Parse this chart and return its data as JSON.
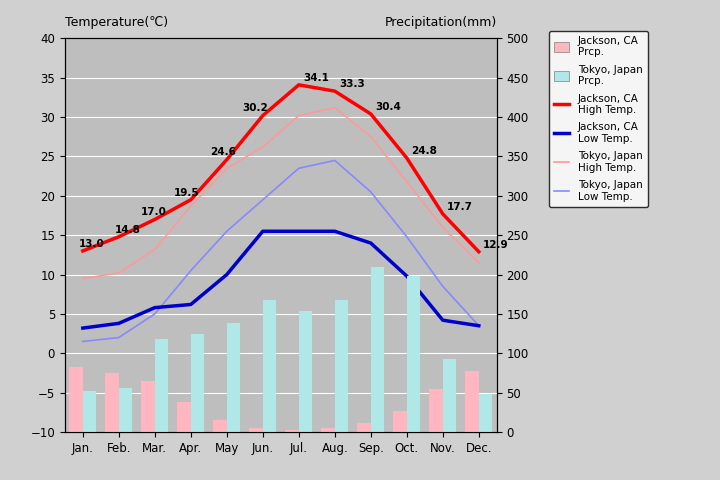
{
  "months": [
    "Jan.",
    "Feb.",
    "Mar.",
    "Apr.",
    "May",
    "Jun.",
    "Jul.",
    "Aug.",
    "Sep.",
    "Oct.",
    "Nov.",
    "Dec."
  ],
  "jackson_high_temp": [
    13.0,
    14.8,
    17.0,
    19.5,
    24.6,
    30.2,
    34.1,
    33.3,
    30.4,
    24.8,
    17.7,
    12.9
  ],
  "jackson_low_temp": [
    3.2,
    3.8,
    5.8,
    6.2,
    10.0,
    15.5,
    15.5,
    15.5,
    14.0,
    9.8,
    4.2,
    3.5
  ],
  "tokyo_high_temp": [
    9.5,
    10.2,
    13.2,
    18.7,
    23.5,
    26.2,
    30.2,
    31.2,
    27.5,
    21.8,
    16.0,
    11.5
  ],
  "tokyo_low_temp": [
    1.5,
    2.0,
    5.0,
    10.5,
    15.5,
    19.5,
    23.5,
    24.5,
    20.5,
    14.8,
    8.5,
    3.5
  ],
  "jackson_prcp_mm": [
    82,
    75,
    65,
    38,
    15,
    5,
    2,
    5,
    12,
    27,
    55,
    78
  ],
  "tokyo_prcp_mm": [
    52,
    56,
    118,
    124,
    138,
    168,
    154,
    168,
    210,
    198,
    93,
    48
  ],
  "jackson_high_labels": [
    "13.0",
    "14.8",
    "17.0",
    "19.5",
    "24.6",
    "30.2",
    "34.1",
    "33.3",
    "30.4",
    "24.8",
    "17.7",
    "12.9"
  ],
  "temp_ylim": [
    -10,
    40
  ],
  "prcp_ylim": [
    0,
    500
  ],
  "prcp_bar_scale": 0.02,
  "jackson_high_color": "#ff0000",
  "jackson_low_color": "#0000cd",
  "tokyo_high_color": "#ff9999",
  "tokyo_low_color": "#8888ff",
  "jackson_prcp_color": "#ffb6c1",
  "tokyo_prcp_color": "#b0e8e8",
  "figure_facecolor": "#d0d0d0",
  "axes_facecolor": "#bebebe",
  "grid_color": "#ffffff",
  "legend_labels": [
    "Jackson, CA\nPrcp.",
    "Tokyo, Japan\nPrcp.",
    "Jackson, CA\nHigh Temp.",
    "Jackson, CA\nLow Temp.",
    "Tokyo, Japan\nHigh Temp.",
    "Tokyo, Japan\nLow Temp."
  ]
}
